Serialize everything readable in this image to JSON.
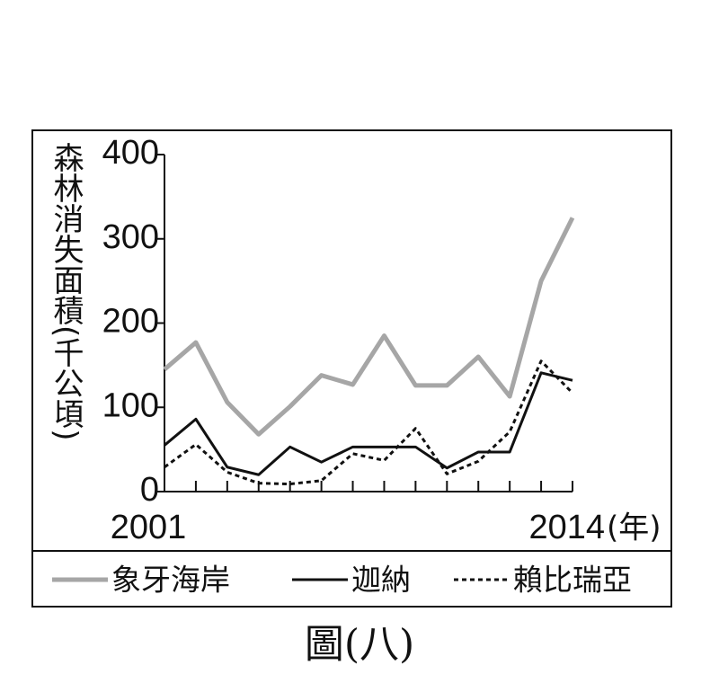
{
  "chart_data": {
    "type": "line",
    "y_label": "森林消失面積(千公頃)",
    "x_label": "(年)",
    "caption": "圖(八)",
    "categories": [
      "2001",
      null,
      null,
      null,
      null,
      null,
      null,
      null,
      null,
      null,
      null,
      null,
      null,
      "2014"
    ],
    "series": [
      {
        "name": "象牙海岸",
        "color": "#a6a6a6",
        "style": "solid",
        "values": [
          145,
          177,
          106,
          68,
          101,
          138,
          127,
          185,
          126,
          126,
          160,
          113,
          250,
          325
        ]
      },
      {
        "name": "迦納",
        "color": "#111111",
        "style": "solid",
        "values": [
          55,
          86,
          29,
          20,
          53,
          35,
          53,
          53,
          53,
          28,
          47,
          47,
          141,
          132
        ]
      },
      {
        "name": "賴比瑞亞",
        "color": "#111111",
        "style": "dotted",
        "values": [
          29,
          56,
          23,
          10,
          9,
          13,
          45,
          37,
          75,
          21,
          36,
          71,
          155,
          117
        ]
      }
    ],
    "ylim": [
      0,
      400
    ],
    "yticks": [
      0,
      100,
      200,
      300,
      400
    ]
  }
}
